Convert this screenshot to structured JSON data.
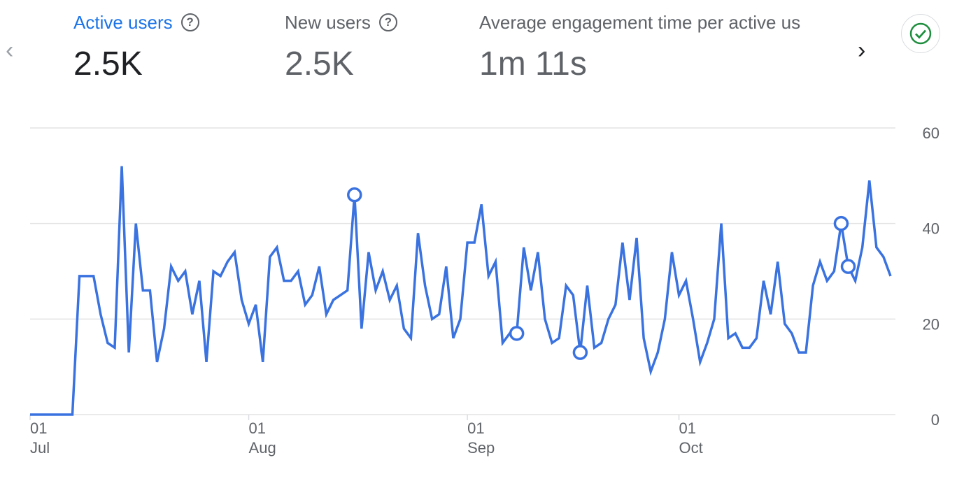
{
  "header": {
    "prev_icon": "chevron-left-icon",
    "next_icon": "chevron-right-icon",
    "status_icon": "check-circle-icon",
    "tabs": [
      {
        "label": "Active users",
        "value": "2.5K",
        "help": "?"
      },
      {
        "label": "New users",
        "value": "2.5K",
        "help": "?"
      },
      {
        "label": "Average engagement time per active us",
        "value": "1m 11s"
      }
    ]
  },
  "colors": {
    "accent": "#1a73e8",
    "line": "#3a72e0",
    "grid": "#e0e0e0",
    "success": "#1e8e3e"
  },
  "chart_data": {
    "type": "line",
    "title": "Active users",
    "ylim": [
      0,
      60
    ],
    "yticks": [
      "0",
      "20",
      "40",
      "60"
    ],
    "xticks": [
      {
        "index": 0,
        "day": "01",
        "month": "Jul"
      },
      {
        "index": 31,
        "day": "01",
        "month": "Aug"
      },
      {
        "index": 62,
        "day": "01",
        "month": "Sep"
      },
      {
        "index": 92,
        "day": "01",
        "month": "Oct"
      }
    ],
    "grid": true,
    "x_range": [
      "Jul 01",
      "Oct 31"
    ],
    "values": [
      0,
      0,
      0,
      0,
      0,
      0,
      0,
      29,
      29,
      29,
      21,
      15,
      14,
      52,
      13,
      40,
      26,
      26,
      11,
      18,
      31,
      28,
      30,
      21,
      28,
      11,
      30,
      29,
      32,
      34,
      24,
      19,
      23,
      11,
      33,
      35,
      28,
      28,
      30,
      23,
      25,
      31,
      21,
      24,
      25,
      26,
      46,
      18,
      34,
      26,
      30,
      24,
      27,
      18,
      16,
      38,
      27,
      20,
      21,
      31,
      16,
      20,
      36,
      36,
      44,
      29,
      32,
      15,
      17,
      17,
      35,
      26,
      34,
      20,
      15,
      16,
      27,
      25,
      13,
      27,
      14,
      15,
      20,
      23,
      36,
      24,
      37,
      16,
      9,
      13,
      20,
      34,
      25,
      28,
      20,
      11,
      15,
      20,
      40,
      16,
      17,
      14,
      14,
      16,
      28,
      21,
      32,
      19,
      17,
      13,
      13,
      27,
      32,
      28,
      30,
      40,
      31,
      28,
      35,
      49,
      35,
      33,
      29
    ],
    "anomalies": [
      46,
      69,
      78,
      115,
      116
    ]
  }
}
